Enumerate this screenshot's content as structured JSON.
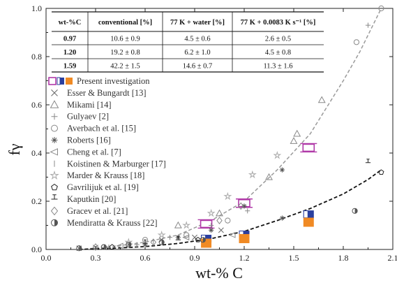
{
  "chart_data": {
    "type": "scatter",
    "xlabel": "wt-% C",
    "ylabel": "fγ",
    "xlim": [
      0.0,
      2.1
    ],
    "ylim": [
      0.0,
      1.0
    ],
    "xticks": [
      "0.0",
      "0.3",
      "0.6",
      "0.9",
      "1.2",
      "1.5",
      "1.8",
      "2.1"
    ],
    "yticks": [
      "0.0",
      "0.2",
      "0.4",
      "0.6",
      "0.8",
      "1.0"
    ],
    "legend_position": "left",
    "table": {
      "headers": [
        "wt-%C",
        "conventional [%]",
        "77 K + water [%]",
        "77 K + 0.0083 K s⁻¹ [%]"
      ],
      "rows": [
        [
          "0.97",
          "10.6 ± 0.9",
          "4.5 ± 0.6",
          "2.6 ± 0.5"
        ],
        [
          "1.20",
          "19.2 ± 0.8",
          "6.2 ± 1.0",
          "4.5 ± 0.8"
        ],
        [
          "1.59",
          "42.2 ± 1.5",
          "14.6 ± 0.7",
          "11.3 ± 1.6"
        ]
      ]
    },
    "series": [
      {
        "name": "Present investigation",
        "marker": "present-conventional",
        "color": "#b03aa8",
        "points": [
          [
            0.97,
            0.106
          ],
          [
            1.2,
            0.192
          ],
          [
            1.59,
            0.422
          ]
        ]
      },
      {
        "name": "",
        "marker": "present-water",
        "color": "#2b3f9e",
        "points": [
          [
            0.97,
            0.045
          ],
          [
            1.2,
            0.062
          ],
          [
            1.59,
            0.146
          ]
        ]
      },
      {
        "name": "",
        "marker": "present-slow",
        "color": "#f08a24",
        "points": [
          [
            0.97,
            0.026
          ],
          [
            1.2,
            0.045
          ],
          [
            1.59,
            0.113
          ]
        ]
      },
      {
        "name": "Esser & Bungardt [13]",
        "marker": "x",
        "color": "#666666",
        "points": [
          [
            0.2,
            0.005
          ],
          [
            0.3,
            0.008
          ],
          [
            0.5,
            0.02
          ],
          [
            0.7,
            0.04
          ],
          [
            0.9,
            0.05
          ],
          [
            1.06,
            0.08
          ]
        ]
      },
      {
        "name": "Mikami [14]",
        "marker": "triangle-up",
        "color": "#888888",
        "points": [
          [
            0.8,
            0.1
          ],
          [
            1.05,
            0.15
          ],
          [
            1.35,
            0.3
          ],
          [
            1.5,
            0.45
          ],
          [
            1.52,
            0.48
          ],
          [
            1.67,
            0.62
          ]
        ]
      },
      {
        "name": "Gulyaev [2]",
        "marker": "plus",
        "color": "#888888",
        "points": [
          [
            0.55,
            0.02
          ],
          [
            0.75,
            0.05
          ],
          [
            1.0,
            0.1
          ],
          [
            1.22,
            0.16
          ],
          [
            1.95,
            0.93
          ]
        ]
      },
      {
        "name": "Averbach et al. [15]",
        "marker": "circle",
        "color": "#888888",
        "points": [
          [
            0.35,
            0.01
          ],
          [
            0.6,
            0.04
          ],
          [
            0.85,
            0.06
          ],
          [
            1.1,
            0.12
          ],
          [
            1.88,
            0.86
          ],
          [
            2.03,
            1.0
          ]
        ]
      },
      {
        "name": "Roberts [16]",
        "marker": "asterisk",
        "color": "#555555",
        "points": [
          [
            0.6,
            0.02
          ],
          [
            0.8,
            0.05
          ],
          [
            1.0,
            0.08
          ],
          [
            1.2,
            0.18
          ],
          [
            1.43,
            0.33
          ],
          [
            1.43,
            0.13
          ]
        ]
      },
      {
        "name": "Cheng et al. [7]",
        "marker": "triangle-left",
        "color": "#888888",
        "points": [
          [
            0.45,
            0.015
          ],
          [
            0.85,
            0.05
          ],
          [
            1.13,
            0.06
          ]
        ]
      },
      {
        "name": "Koistinen & Marburger [17]",
        "marker": "vline",
        "color": "#888888",
        "points": [
          [
            0.38,
            0.01
          ],
          [
            0.55,
            0.02
          ],
          [
            0.65,
            0.03
          ]
        ]
      },
      {
        "name": "Marder & Krauss [18]",
        "marker": "star",
        "color": "#aaaaaa",
        "points": [
          [
            0.5,
            0.03
          ],
          [
            0.7,
            0.06
          ],
          [
            0.85,
            0.1
          ],
          [
            1.0,
            0.15
          ],
          [
            1.1,
            0.22
          ],
          [
            1.25,
            0.31
          ],
          [
            1.4,
            0.39
          ]
        ]
      },
      {
        "name": "Gavrilijuk et al. [19]",
        "marker": "pentagon",
        "color": "#222222",
        "points": [
          [
            0.4,
            0.01
          ],
          [
            0.92,
            0.04
          ],
          [
            2.03,
            0.32
          ]
        ]
      },
      {
        "name": "Kaputkin [20]",
        "marker": "hline",
        "color": "#222222",
        "points": [
          [
            0.6,
            0.025
          ],
          [
            0.8,
            0.04
          ],
          [
            1.95,
            0.36
          ]
        ]
      },
      {
        "name": "Gracev et al. [21]",
        "marker": "diamond",
        "color": "#888888",
        "points": [
          [
            0.3,
            0.01
          ],
          [
            0.65,
            0.03
          ],
          [
            1.05,
            0.12
          ],
          [
            1.18,
            0.18
          ]
        ]
      },
      {
        "name": "Mendiratta & Krauss [22]",
        "marker": "half-circle",
        "color": "#555555",
        "points": [
          [
            0.2,
            0.005
          ],
          [
            0.35,
            0.01
          ],
          [
            0.5,
            0.02
          ],
          [
            0.7,
            0.03
          ],
          [
            0.95,
            0.04
          ],
          [
            1.87,
            0.16
          ]
        ]
      }
    ],
    "fits": [
      {
        "style": "gray-dashed",
        "color": "#9a9a9a",
        "points": [
          [
            0.2,
            0.0
          ],
          [
            0.4,
            0.012
          ],
          [
            0.6,
            0.03
          ],
          [
            0.8,
            0.06
          ],
          [
            1.0,
            0.12
          ],
          [
            1.2,
            0.2
          ],
          [
            1.4,
            0.33
          ],
          [
            1.6,
            0.48
          ],
          [
            1.8,
            0.7
          ],
          [
            1.9,
            0.82
          ],
          [
            2.03,
            1.0
          ]
        ]
      },
      {
        "style": "black-dashed",
        "color": "#111111",
        "points": [
          [
            0.2,
            0.0
          ],
          [
            0.4,
            0.005
          ],
          [
            0.6,
            0.012
          ],
          [
            0.8,
            0.025
          ],
          [
            1.0,
            0.045
          ],
          [
            1.2,
            0.075
          ],
          [
            1.4,
            0.12
          ],
          [
            1.6,
            0.17
          ],
          [
            1.8,
            0.23
          ],
          [
            1.95,
            0.29
          ],
          [
            2.03,
            0.33
          ]
        ]
      }
    ]
  }
}
